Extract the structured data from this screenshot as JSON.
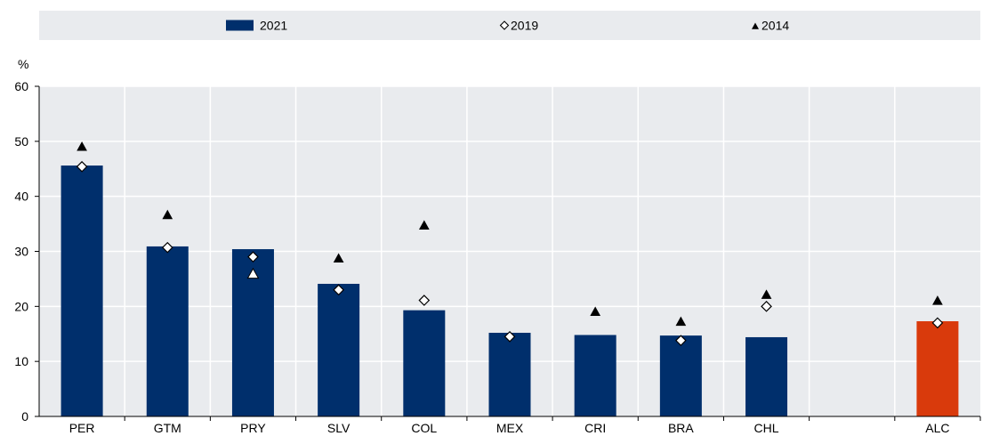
{
  "chart_data": {
    "type": "bar",
    "y_unit": "%",
    "ylim": [
      0,
      60
    ],
    "yticks": [
      0,
      10,
      20,
      30,
      40,
      50,
      60
    ],
    "grid": true,
    "legend_position": "top",
    "categories": [
      "PER",
      "GTM",
      "PRY",
      "SLV",
      "COL",
      "MEX",
      "CRI",
      "BRA",
      "CHL",
      "",
      "ALC"
    ],
    "series": [
      {
        "name": "2021",
        "mark": "bar",
        "color": "#002f6c",
        "highlight": {
          "ALC": "#d93a0c"
        },
        "values": [
          45.6,
          30.9,
          30.4,
          24.1,
          19.3,
          15.2,
          14.8,
          14.7,
          14.4,
          null,
          17.3
        ]
      },
      {
        "name": "2019",
        "mark": "diamond",
        "values": [
          45.4,
          30.7,
          29.0,
          23.0,
          21.1,
          14.5,
          null,
          13.8,
          20.0,
          null,
          17.0
        ]
      },
      {
        "name": "2014",
        "mark": "triangle",
        "values": [
          49.0,
          36.6,
          25.9,
          28.7,
          34.7,
          null,
          19.0,
          17.2,
          22.1,
          null,
          21.0
        ]
      }
    ],
    "hollow_triangle_points": [
      "PRY"
    ]
  }
}
